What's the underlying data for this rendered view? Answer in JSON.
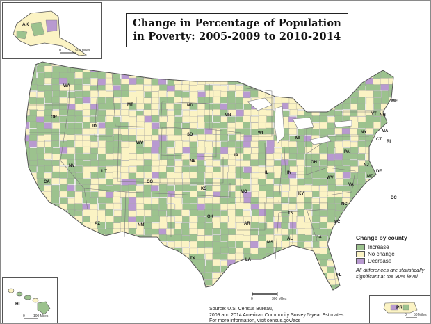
{
  "title": {
    "line1": "Change in Percentage of Population",
    "line2": "in Poverty: 2005-2009 to 2010-2014"
  },
  "legend": {
    "title": "Change by county",
    "items": [
      {
        "label": "Increase",
        "color": "#9cc28e"
      },
      {
        "label": "No change",
        "color": "#fbf3c4"
      },
      {
        "label": "Decrease",
        "color": "#b89ad0"
      }
    ],
    "note": "All differences are statistically significant at the 90% level."
  },
  "source": {
    "line1": "Source: U.S. Census Bureau,",
    "line2": "2009 and 2014 American Community Survey 5-year Estimates",
    "line3": "For more information, visit census.gov/acs"
  },
  "insets": {
    "alaska": {
      "label": "AK",
      "scale_zero": "0",
      "scale_end": "500 Miles"
    },
    "hawaii": {
      "label": "HI",
      "scale_zero": "0",
      "scale_end": "100 Miles"
    },
    "puerto_rico": {
      "label": "PR",
      "scale_zero": "0",
      "scale_end": "50 Miles"
    }
  },
  "main_scale": {
    "zero": "0",
    "end": "300 Miles"
  },
  "state_labels": [
    "WA",
    "OR",
    "CA",
    "NV",
    "ID",
    "MT",
    "WY",
    "UT",
    "AZ",
    "NM",
    "CO",
    "ND",
    "SD",
    "NE",
    "KS",
    "OK",
    "TX",
    "MN",
    "IA",
    "MO",
    "AR",
    "LA",
    "WI",
    "IL",
    "MI",
    "IN",
    "OH",
    "KY",
    "TN",
    "MS",
    "AL",
    "GA",
    "FL",
    "SC",
    "NC",
    "VA",
    "WV",
    "PA",
    "NY",
    "VT",
    "NH",
    "ME",
    "MA",
    "RI",
    "CT",
    "NJ",
    "DE",
    "MD",
    "DC"
  ],
  "colors": {
    "increase": "#9cc28e",
    "no_change": "#fbf3c4",
    "decrease": "#b89ad0",
    "water": "#ffffff",
    "canada_mexico": "#ffffff"
  }
}
